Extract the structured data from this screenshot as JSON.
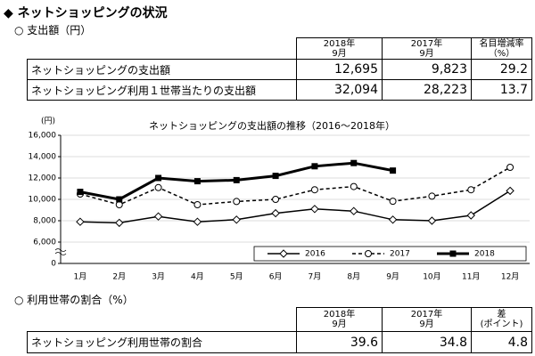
{
  "header": {
    "title": "◆ ネットショッピングの状況"
  },
  "section1": {
    "heading": "○ 支出額（円）",
    "table": {
      "columns": [
        "2018年\n9月",
        "2017年\n9月",
        "名目増減率\n（%）"
      ],
      "rows": [
        [
          "ネットショッピングの支出額",
          "12,695",
          "9,823",
          "29.2"
        ],
        [
          "ネットショッピング利用１世帯当たりの支出額",
          "32,094",
          "28,223",
          "13.7"
        ]
      ]
    }
  },
  "chart": {
    "type": "line",
    "title": "ネットショッピングの支出額の推移（2016～2018年）",
    "y_label": "(円)",
    "categories": [
      "1月",
      "2月",
      "3月",
      "4月",
      "5月",
      "6月",
      "7月",
      "8月",
      "9月",
      "10月",
      "11月",
      "12月"
    ],
    "series": [
      {
        "name": "2016",
        "color": "#000000",
        "style": "solid-diamond",
        "values": [
          7900,
          7800,
          8400,
          7900,
          8100,
          8700,
          9100,
          8900,
          8100,
          8000,
          8500,
          10800
        ]
      },
      {
        "name": "2017",
        "color": "#000000",
        "style": "dashed-circle",
        "values": [
          10500,
          9500,
          11100,
          9500,
          9800,
          10000,
          10900,
          11200,
          9823,
          10300,
          10900,
          13000
        ]
      },
      {
        "name": "2018",
        "color": "#000000",
        "style": "thick-square",
        "values": [
          10700,
          10000,
          12000,
          11700,
          11800,
          12200,
          13100,
          13400,
          12695,
          null,
          null,
          null
        ]
      }
    ],
    "ylim": [
      6000,
      16000
    ],
    "yticks": [
      0,
      {
        "value": 6000,
        "label": "6,000"
      },
      {
        "value": 8000,
        "label": "8,000"
      },
      {
        "value": 10000,
        "label": "10,000"
      },
      {
        "value": 12000,
        "label": "12,000"
      },
      {
        "value": 14000,
        "label": "14,000"
      },
      {
        "value": 16000,
        "label": "16,000"
      }
    ],
    "grid": true,
    "legend": "bottom-right"
  },
  "section2": {
    "heading": "○ 利用世帯の割合（%）",
    "table": {
      "columns": [
        "2018年\n9月",
        "2017年\n9月",
        "差\n(ポイント)"
      ],
      "rows": [
        [
          "ネットショッピング利用世帯の割合",
          "39.6",
          "34.8",
          "4.8"
        ]
      ]
    }
  }
}
